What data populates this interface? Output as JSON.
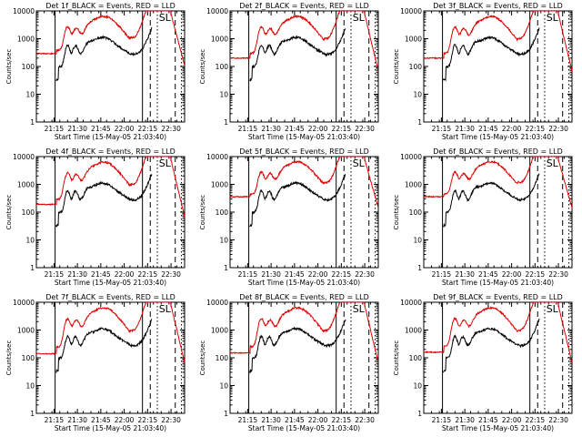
{
  "chart_data": {
    "type": "line",
    "title_template": "Det {n}f_BLACK = Events, RED = LLD",
    "xlabel": "Start Time (15-May-05 21:03:40)",
    "ylabel": "Counts/sec",
    "annotation": "SL",
    "x_tick_labels": [
      "21:15",
      "21:30",
      "21:45",
      "22:00",
      "22:15",
      "22:30"
    ],
    "x_tick_minutes": [
      11.3,
      26.3,
      41.3,
      56.3,
      71.3,
      86.3
    ],
    "xlim_minutes": [
      0,
      95
    ],
    "y_scale": "log",
    "ylim": [
      1,
      10000
    ],
    "y_tick_labels": [
      "1",
      "10",
      "100",
      "1000",
      "10000"
    ],
    "vertical_lines": [
      {
        "minute": 12.0,
        "style": "solid"
      },
      {
        "minute": 68.0,
        "style": "solid"
      },
      {
        "minute": 73.0,
        "style": "dashed"
      },
      {
        "minute": 77.5,
        "style": "dotted"
      },
      {
        "minute": 89.0,
        "style": "dashed"
      },
      {
        "minute": 93.0,
        "style": "dotted"
      }
    ],
    "series_colors": {
      "events": "#000000",
      "lld": "#dd0000"
    },
    "panels": [
      {
        "detector": "1",
        "lld_base": 290
      },
      {
        "detector": "2",
        "lld_base": 200
      },
      {
        "detector": "3",
        "lld_base": 200
      },
      {
        "detector": "4",
        "lld_base": 190
      },
      {
        "detector": "5",
        "lld_base": 360
      },
      {
        "detector": "6",
        "lld_base": 360
      },
      {
        "detector": "7",
        "lld_base": 140
      },
      {
        "detector": "8",
        "lld_base": 150
      },
      {
        "detector": "9",
        "lld_base": 160
      }
    ]
  }
}
